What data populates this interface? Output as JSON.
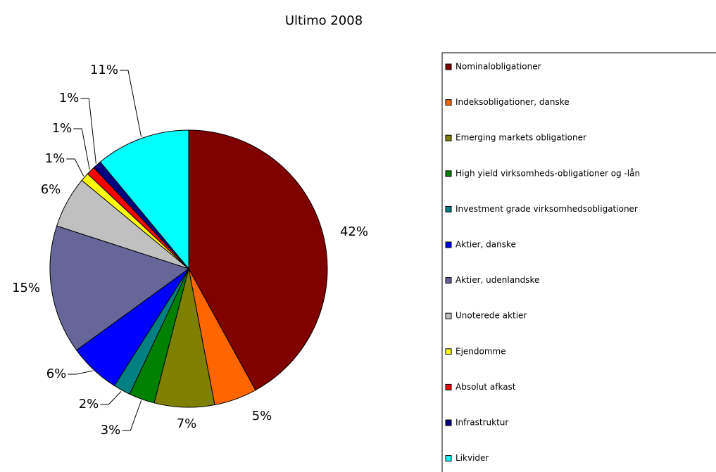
{
  "chart_data": {
    "type": "pie",
    "title": "Ultimo 2008",
    "categories": [
      "Nominalobligationer",
      "Indeksobligationer, danske",
      "Emerging markets obligationer",
      "High yield virksomheds-obligationer og -lån",
      "Investment grade virksomhedsobligationer",
      "Aktier, danske",
      "Aktier, udenlandske",
      "Unoterede aktier",
      "Ejendomme",
      "Absolut afkast",
      "Infrastruktur",
      "Likvider"
    ],
    "values": [
      42,
      5,
      7,
      3,
      2,
      6,
      15,
      6,
      1,
      1,
      1,
      11
    ],
    "value_labels": [
      "42%",
      "5%",
      "7%",
      "3%",
      "2%",
      "6%",
      "15%",
      "6%",
      "1%",
      "1%",
      "1%",
      "11%"
    ],
    "colors": [
      "#800000",
      "#FF6600",
      "#808000",
      "#008000",
      "#008080",
      "#0000FF",
      "#666699",
      "#C0C0C0",
      "#FFFF00",
      "#FF0000",
      "#000080",
      "#00FFFF"
    ]
  }
}
